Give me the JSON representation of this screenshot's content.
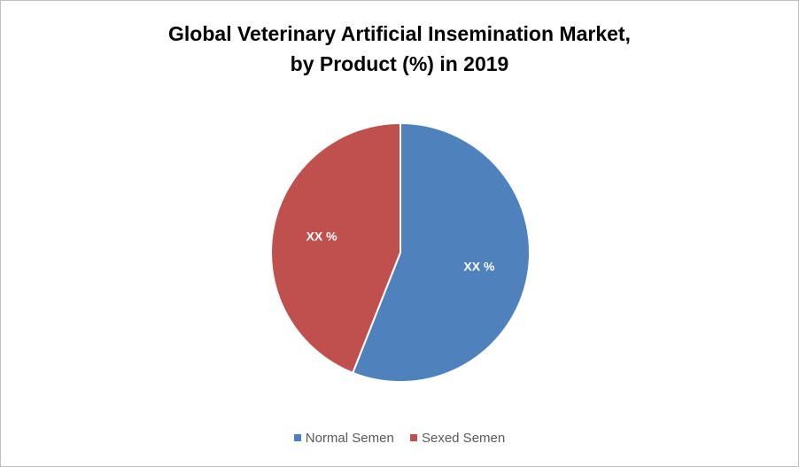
{
  "chart_data": {
    "type": "pie",
    "title": "Global Veterinary Artificial  Insemination Market,",
    "subtitle": "by Product (%) in 2019",
    "slices": [
      {
        "label": "Normal Semen",
        "value": 56,
        "color": "#4f81bd",
        "data_label": "XX %"
      },
      {
        "label": "Sexed Semen",
        "value": 44,
        "color": "#c0504d",
        "data_label": "XX %"
      }
    ],
    "legend_position": "bottom"
  }
}
